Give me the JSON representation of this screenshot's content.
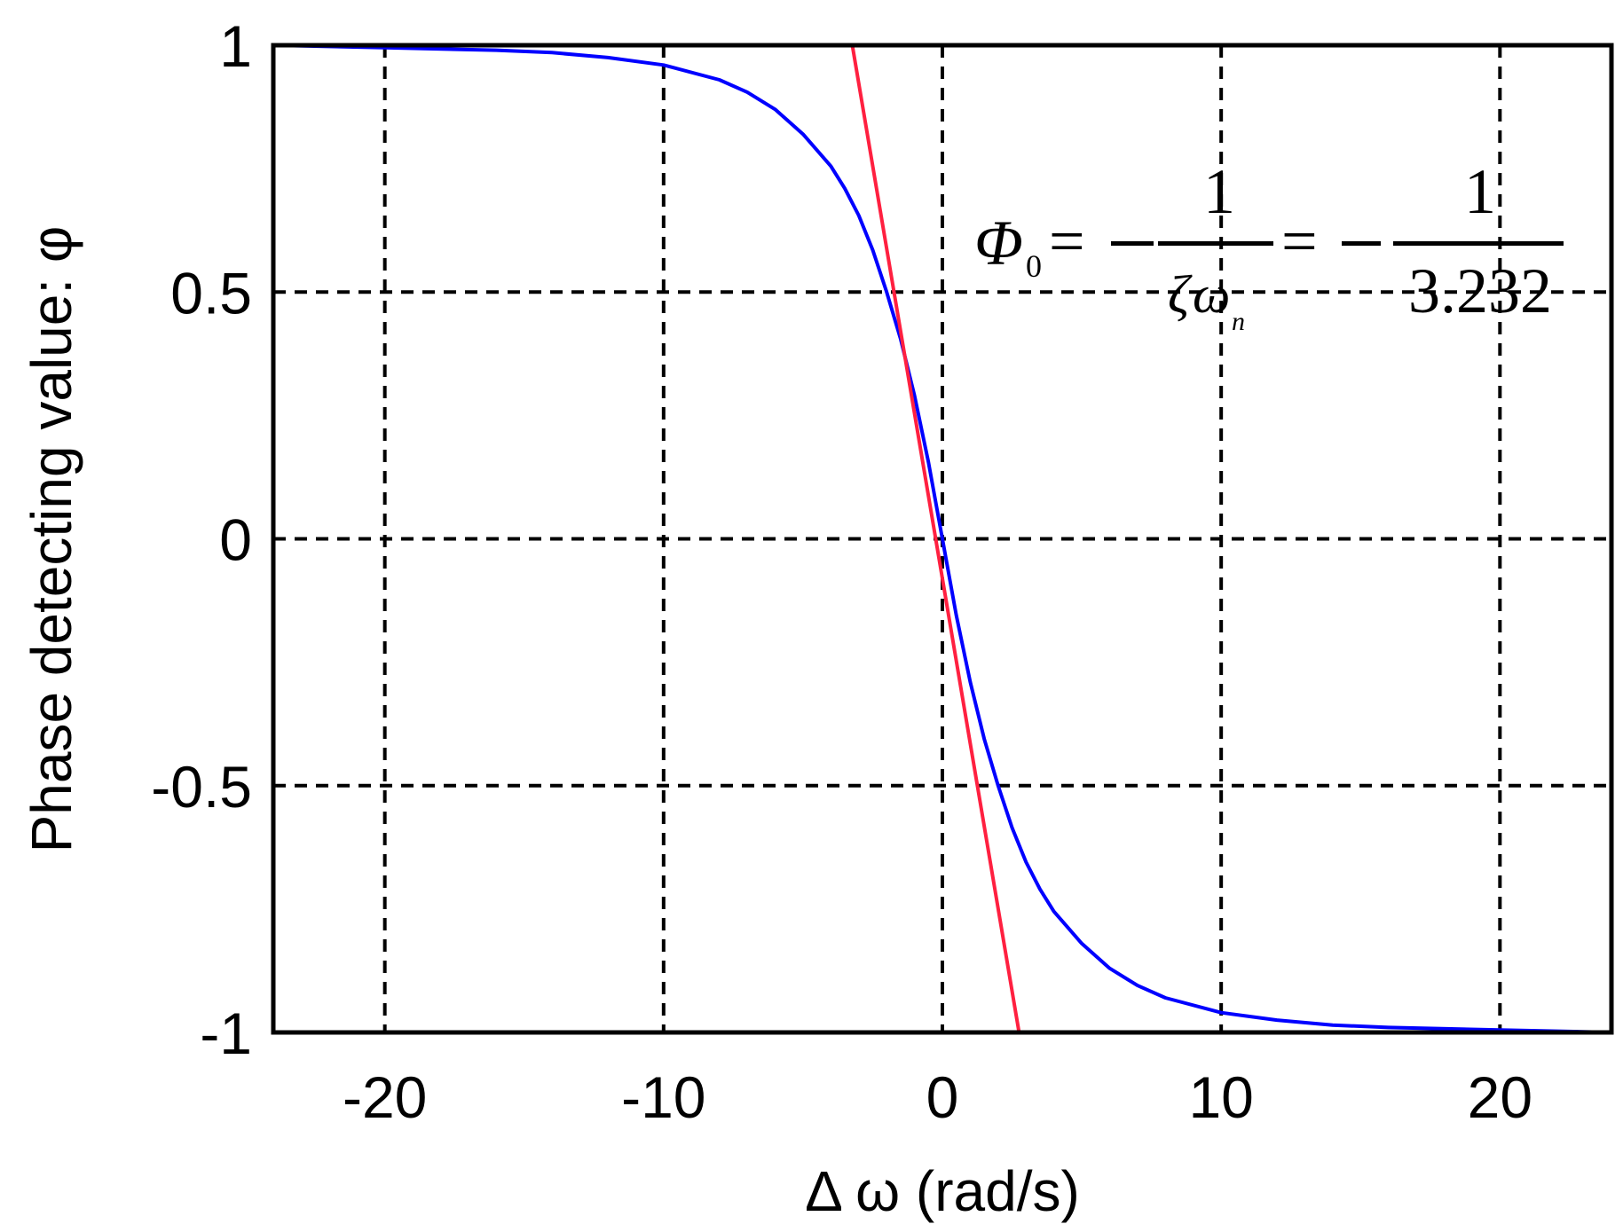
{
  "chart_data": {
    "type": "line",
    "title": "",
    "xlabel": "Δ ω  (rad/s)",
    "ylabel": "Phase detecting value: φ",
    "xlim": [
      -24,
      24
    ],
    "ylim": [
      -1,
      1
    ],
    "xticks": [
      -20,
      -10,
      0,
      10,
      20
    ],
    "xtick_labels": [
      "-20",
      "-10",
      "0",
      "10",
      "20"
    ],
    "yticks": [
      1,
      0.5,
      0,
      -0.5,
      -1
    ],
    "ytick_labels": [
      "1",
      "0.5",
      "0",
      "-0.5",
      "-1"
    ],
    "grid": true,
    "series": [
      {
        "color": "#0000ff",
        "x": [
          -24,
          -20,
          -16,
          -14,
          -12,
          -10,
          -8,
          -7,
          -6,
          -5,
          -4,
          -3.5,
          -3,
          -2.5,
          -2,
          -1.5,
          -1,
          -0.5,
          0,
          0.5,
          1,
          1.5,
          2,
          2.5,
          3,
          3.5,
          4,
          5,
          6,
          7,
          8,
          10,
          12,
          14,
          16,
          20,
          24
        ],
        "y": [
          1.0,
          0.995,
          0.99,
          0.985,
          0.975,
          0.96,
          0.93,
          0.905,
          0.87,
          0.82,
          0.755,
          0.71,
          0.655,
          0.585,
          0.5,
          0.405,
          0.29,
          0.155,
          0,
          -0.155,
          -0.29,
          -0.405,
          -0.5,
          -0.585,
          -0.655,
          -0.71,
          -0.755,
          -0.82,
          -0.87,
          -0.905,
          -0.93,
          -0.96,
          -0.975,
          -0.985,
          -0.99,
          -0.995,
          -1.0
        ]
      },
      {
        "color": "#ff2040",
        "x": [
          -3.232,
          2.75
        ],
        "y": [
          1.0,
          -1.0
        ]
      }
    ],
    "annotation": {
      "lhs": "Φ",
      "lhs_sub": "0",
      "eq": "=",
      "num1": "1",
      "den1_zeta": "ζ",
      "den1_omega": "ω",
      "den1_sub": "n",
      "num2": "1",
      "den2": "3.232"
    }
  }
}
